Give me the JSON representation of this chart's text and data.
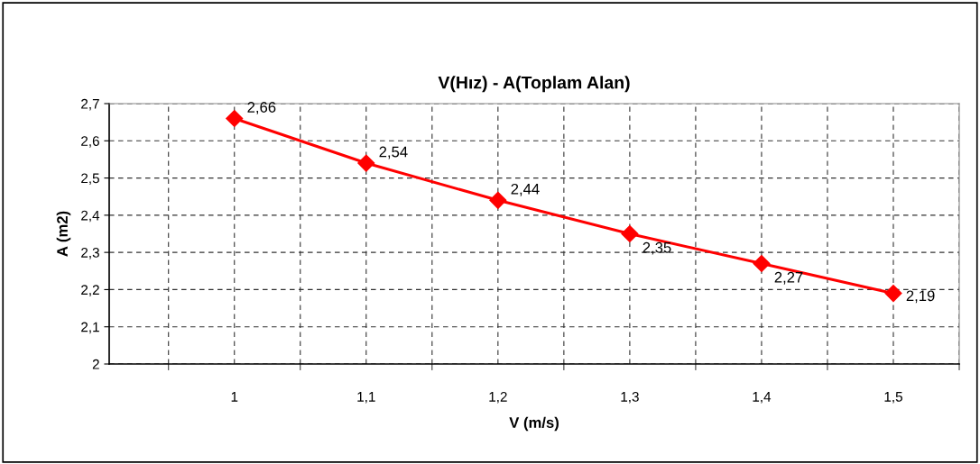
{
  "chart_data": {
    "type": "line",
    "title": "V(Hız) - A(Toplam Alan)",
    "xlabel": "V (m/s)",
    "ylabel": "A (m2)",
    "categories": [
      "1",
      "1,1",
      "1,2",
      "1,3",
      "1,4",
      "1,5"
    ],
    "series": [
      {
        "color": "#ff0000",
        "values": [
          2.66,
          2.54,
          2.44,
          2.35,
          2.27,
          2.19
        ],
        "value_labels": [
          "2,66",
          "2,54",
          "2,44",
          "2,35",
          "2,27",
          "2,19"
        ]
      }
    ],
    "ylim": [
      2,
      2.7
    ],
    "yticks": [
      {
        "value": 2,
        "label": "2"
      },
      {
        "value": 2.1,
        "label": "2,1"
      },
      {
        "value": 2.2,
        "label": "2,2"
      },
      {
        "value": 2.3,
        "label": "2,3"
      },
      {
        "value": 2.4,
        "label": "2,4"
      },
      {
        "value": 2.5,
        "label": "2,5"
      },
      {
        "value": 2.6,
        "label": "2,6"
      },
      {
        "value": 2.7,
        "label": "2,7"
      }
    ],
    "grid": true,
    "marker": "diamond",
    "line_style": "solid"
  }
}
